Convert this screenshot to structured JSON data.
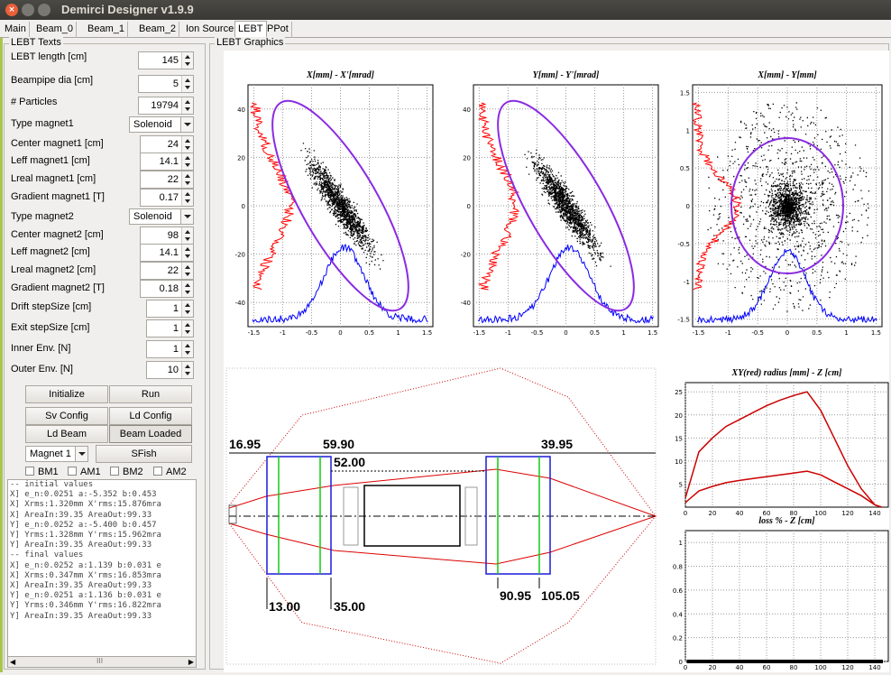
{
  "window": {
    "title": "Demirci Designer v1.9.9"
  },
  "tabs": [
    "Main",
    "Beam_0",
    "Beam_1",
    "Beam_2",
    "Ion Source",
    "LEBT",
    "PPot"
  ],
  "active_tab": "LEBT",
  "left_panel": {
    "title": "LEBT Texts",
    "params": [
      {
        "label": "LEBT length   [cm]",
        "value": "145"
      },
      {
        "label": "Beampipe dia [cm]",
        "value": "5"
      },
      {
        "label": "# Particles",
        "value": "19794"
      },
      {
        "label": "Type magnet1",
        "value": "Solenoid"
      },
      {
        "label": "Center magnet1 [cm]",
        "value": "24"
      },
      {
        "label": "Leff  magnet1  [cm]",
        "value": "14.1"
      },
      {
        "label": "Lreal  magnet1   [cm]",
        "value": "22"
      },
      {
        "label": "Gradient magnet1 [T]",
        "value": "0.17"
      },
      {
        "label": "Type magnet2",
        "value": "Solenoid"
      },
      {
        "label": "Center magnet2 [cm]",
        "value": "98"
      },
      {
        "label": "Leff  magnet2  [cm]",
        "value": "14.1"
      },
      {
        "label": "Lreal  magnet2   [cm]",
        "value": "22"
      },
      {
        "label": "Gradient magnet2 [T]",
        "value": "0.18"
      },
      {
        "label": "Drift stepSize [cm]",
        "value": "1"
      },
      {
        "label": "Exit stepSize [cm]",
        "value": "1"
      },
      {
        "label": "Inner Env. [N]",
        "value": "1"
      },
      {
        "label": "Outer Env. [N]",
        "value": "10"
      }
    ],
    "buttons": {
      "initialize": "Initialize",
      "run": "Run",
      "sv_config": "Sv Config",
      "ld_config": "Ld Config",
      "ld_beam": "Ld Beam",
      "beam_loaded": "Beam Loaded",
      "magnet_select": "Magnet 1",
      "sfish": "SFish"
    },
    "checkboxes": [
      "BM1",
      "AM1",
      "BM2",
      "AM2"
    ],
    "log": [
      "-- initial values",
      "X] e_n:0.0251 a:-5.352 b:0.453",
      "X] Xrms:1.320mm X'rms:15.876mra",
      "X] AreaIn:39.35 AreaOut:99.33",
      "Y] e_n:0.0252 a:-5.400 b:0.457",
      "Y] Yrms:1.328mm Y'rms:15.962mra",
      "Y] AreaIn:39.35 AreaOut:99.33",
      "-- final values",
      "X] e_n:0.0252 a:1.139 b:0.031 e",
      "X] Xrms:0.347mm X'rms:16.853mra",
      "X] AreaIn:39.35 AreaOut:99.33",
      "Y] e_n:0.0251 a:1.136 b:0.031 e",
      "Y] Yrms:0.346mm Y'rms:16.822mra",
      "Y] AreaIn:39.35 AreaOut:99.33"
    ],
    "scroll_marker": "III"
  },
  "graphics": {
    "title": "LEBT Graphics",
    "layout": {
      "dims": [
        "16.95",
        "59.90",
        "52.00",
        "39.95",
        "13.00",
        "35.00",
        "90.95",
        "105.05"
      ]
    }
  },
  "chart_data": [
    {
      "type": "scatter",
      "title": "X[mm] - X'[mrad]",
      "xlim": [
        -1.6,
        1.6
      ],
      "ylim": [
        -50,
        50
      ],
      "x_ticks": [
        "-1.5",
        "-1",
        "-0.5",
        "0",
        "0.5",
        "1",
        "1.5"
      ],
      "y_ticks": [
        "40",
        "20",
        "0",
        "-20",
        "-40"
      ]
    },
    {
      "type": "scatter",
      "title": "Y[mm] - Y'[mrad]",
      "xlim": [
        -1.6,
        1.6
      ],
      "ylim": [
        -50,
        50
      ],
      "x_ticks": [
        "-1.5",
        "-1",
        "-0.5",
        "0",
        "0.5",
        "1",
        "1.5"
      ],
      "y_ticks": [
        "40",
        "20",
        "0",
        "-20",
        "-40"
      ]
    },
    {
      "type": "scatter",
      "title": "X[mm] - Y[mm]",
      "xlim": [
        -1.6,
        1.6
      ],
      "ylim": [
        -1.6,
        1.6
      ],
      "x_ticks": [
        "-1.5",
        "-1",
        "-0.5",
        "0",
        "0.5",
        "1",
        "1.5"
      ],
      "y_ticks": [
        "1.5",
        "1",
        "0.5",
        "0",
        "-0.5",
        "-1",
        "-1.5"
      ]
    },
    {
      "type": "line",
      "title": "XY(red) radius [mm] - Z [cm]",
      "xlim": [
        0,
        150
      ],
      "ylim": [
        0,
        27
      ],
      "x_ticks": [
        "0",
        "20",
        "40",
        "60",
        "80",
        "100",
        "120",
        "140"
      ],
      "y_ticks": [
        "25",
        "20",
        "15",
        "10",
        "5"
      ],
      "series": [
        {
          "x": [
            0,
            10,
            20,
            30,
            40,
            50,
            60,
            70,
            80,
            90,
            100,
            110,
            120,
            130,
            140,
            145
          ],
          "y": [
            2,
            12,
            15,
            17.5,
            19,
            20.5,
            22,
            23.2,
            24.2,
            25,
            21,
            15,
            9,
            4,
            0.5,
            0
          ]
        },
        {
          "x": [
            0,
            10,
            20,
            30,
            40,
            50,
            60,
            70,
            80,
            90,
            100,
            110,
            120,
            130,
            140,
            145
          ],
          "y": [
            1,
            3.5,
            4.5,
            5.3,
            5.8,
            6.2,
            6.6,
            7,
            7.4,
            7.8,
            7,
            5.5,
            4,
            2.5,
            0.5,
            0
          ]
        }
      ]
    },
    {
      "type": "scatter",
      "title": "loss % - Z [cm]",
      "xlim": [
        0,
        150
      ],
      "ylim": [
        0,
        1.1
      ],
      "x_ticks": [
        "0",
        "20",
        "40",
        "60",
        "80",
        "100",
        "120",
        "140"
      ],
      "y_ticks": [
        "1",
        "0.8",
        "0.6",
        "0.4",
        "0.2",
        "0"
      ]
    }
  ]
}
